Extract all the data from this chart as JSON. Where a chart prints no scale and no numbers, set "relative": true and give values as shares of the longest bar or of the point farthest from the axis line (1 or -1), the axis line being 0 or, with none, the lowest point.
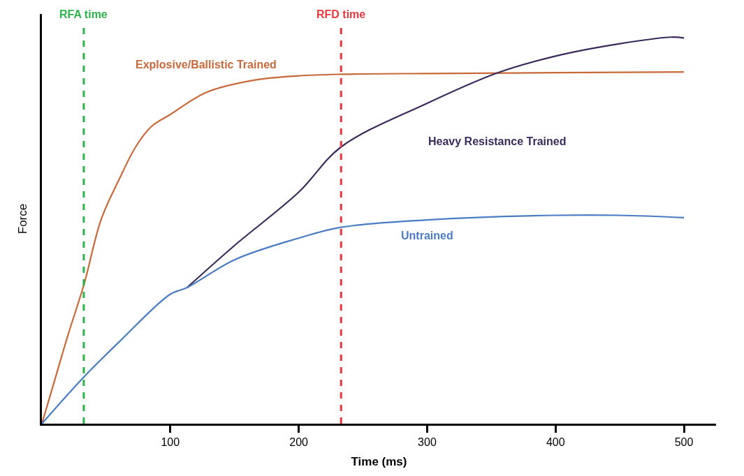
{
  "chart_data": {
    "type": "line",
    "relative": true,
    "xlabel": "Time (ms)",
    "ylabel": "Force",
    "xlim": [
      0,
      525
    ],
    "xticks": [
      100,
      200,
      300,
      400,
      500
    ],
    "legend": false,
    "marker": "none",
    "line_style": "solid",
    "series": [
      {
        "name": "Explosive/Ballistic Trained",
        "color": "#c8693a",
        "x": [
          0,
          10,
          20,
          33,
          46,
          60,
          73,
          85,
          100,
          128,
          166,
          200,
          233,
          300,
          400,
          500
        ],
        "values": [
          0,
          0.113,
          0.226,
          0.363,
          0.527,
          0.631,
          0.716,
          0.768,
          0.8,
          0.857,
          0.889,
          0.9,
          0.904,
          0.906,
          0.908,
          0.91
        ]
      },
      {
        "name": "Heavy Resistance Trained",
        "color": "#3b2a5c",
        "x": [
          113,
          150,
          200,
          233,
          300,
          355,
          400,
          450,
          490,
          500
        ],
        "values": [
          0.352,
          0.461,
          0.599,
          0.716,
          0.829,
          0.908,
          0.951,
          0.983,
          1.0,
          0.998
        ]
      },
      {
        "name": "Untrained",
        "color": "#4a7cc4",
        "x": [
          0,
          33,
          60,
          100,
          113,
          150,
          200,
          233,
          300,
          400,
          450,
          500
        ],
        "values": [
          0,
          0.122,
          0.211,
          0.335,
          0.352,
          0.424,
          0.48,
          0.508,
          0.527,
          0.539,
          0.539,
          0.533
        ]
      }
    ],
    "ref_lines": [
      {
        "axis": "x",
        "value": 32.6,
        "label": "RFA time",
        "color": "#2db34a",
        "line_style": "dashed"
      },
      {
        "axis": "x",
        "value": 233,
        "label": "RFD time",
        "color": "#e8383d",
        "line_style": "dashed"
      }
    ]
  }
}
